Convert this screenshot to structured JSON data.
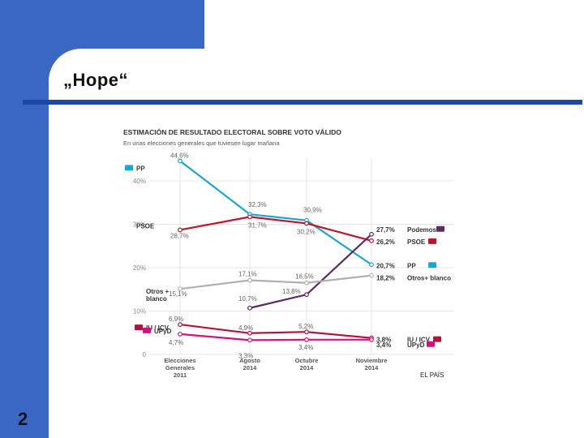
{
  "slide": {
    "title": "„Hope“",
    "number": "2"
  },
  "chart_data": {
    "type": "line",
    "title": "ESTIMACIÓN DE RESULTADO ELECTORAL SOBRE VOTO VÁLIDO",
    "subtitle": "En unas elecciones generales que tuviesen lugar mañana",
    "categories": [
      [
        "Elecciones",
        "Generales",
        "2011"
      ],
      [
        "Agosto",
        "2014"
      ],
      [
        "Octubre",
        "2014"
      ],
      [
        "Noviembre",
        "2014"
      ]
    ],
    "ylim": [
      0,
      50
    ],
    "yticks": [
      "0",
      "10%",
      "20%",
      "30%",
      "40%"
    ],
    "source": "EL PAÍS",
    "series": [
      {
        "name": "PP",
        "color": "#1aa6d4",
        "values": [
          44.6,
          32.3,
          30.9,
          20.7
        ],
        "labels": [
          "44,6%",
          "32,3%",
          "30,9%",
          "20,7%"
        ]
      },
      {
        "name": "PSOE",
        "color": "#c0142a",
        "values": [
          28.7,
          31.7,
          30.2,
          26.2
        ],
        "labels": [
          "28,7%",
          "31,7%",
          "30,2%",
          "26,2%"
        ]
      },
      {
        "name": "Podemos",
        "color": "#5e2a62",
        "values": [
          null,
          10.7,
          13.8,
          27.7
        ],
        "labels": [
          "",
          "10,7%",
          "13,8%",
          "27,7%"
        ]
      },
      {
        "name": "Otros+ blanco",
        "color": "#b0b0b0",
        "values": [
          15.1,
          17.1,
          16.5,
          18.2
        ],
        "labels": [
          "15,1%",
          "17,1%",
          "16,5%",
          "18,2%"
        ]
      },
      {
        "name": "IU / ICV",
        "color": "#b5123a",
        "values": [
          6.9,
          4.9,
          5.2,
          3.8
        ],
        "labels": [
          "6,9%",
          "4,9%",
          "5,2%",
          "3,8%"
        ]
      },
      {
        "name": "UPyD",
        "color": "#d4107e",
        "values": [
          4.7,
          3.3,
          3.4,
          3.4
        ],
        "labels": [
          "4,7%",
          "3,3%",
          "3,4%",
          "3,4%"
        ]
      }
    ],
    "start_labels": [
      "PP",
      "PSOE",
      "Otros +",
      "blanco",
      "IU / ICV",
      "UPyD"
    ],
    "end_labels": [
      "Podemos",
      "PSOE",
      "PP",
      "Otros+ blanco",
      "IU / ICV",
      "UPyD"
    ]
  }
}
